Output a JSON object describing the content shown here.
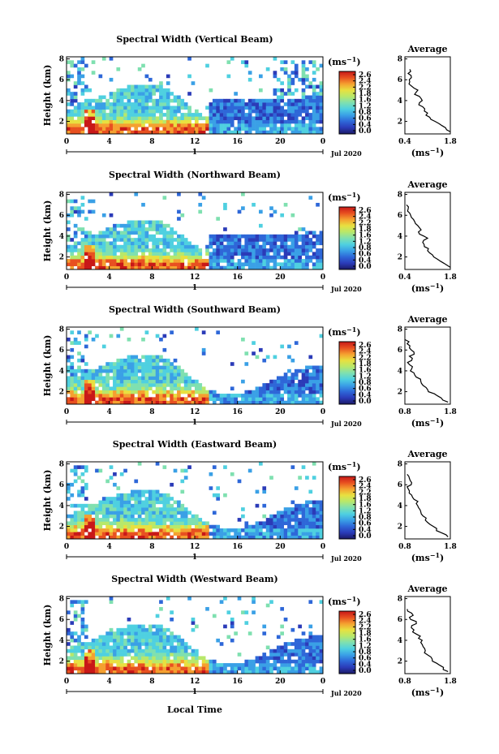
{
  "figure": {
    "xlabel": "Local Time",
    "date_label": "Jul 2020",
    "day_label": "1",
    "unit_label": "(ms",
    "unit_sup": "−1",
    "unit_close": ")",
    "avg_title": "Average",
    "avg_xlabel": "(ms",
    "avg_xlabel_sup": "−1",
    "avg_xlabel_close": ")"
  },
  "colors": {
    "colormap": [
      "#1a1a66",
      "#2b3bb8",
      "#2e67d8",
      "#3aa0e6",
      "#4fd0e0",
      "#7fe0b0",
      "#b8e86a",
      "#e8e040",
      "#f5a030",
      "#e85020",
      "#c81818"
    ]
  },
  "chart_data": [
    {
      "type": "heatmap",
      "title": "Spectral Width (Vertical Beam)",
      "ylabel": "Height (km)",
      "x_ticks": [
        "0",
        "4",
        "8",
        "12",
        "16",
        "20",
        "0"
      ],
      "y_ticks": [
        "2",
        "4",
        "6",
        "8"
      ],
      "xlim": [
        0,
        24
      ],
      "ylim": [
        0.8,
        8.2
      ],
      "colorbar_ticks": [
        "2.6",
        "2.4",
        "2.2",
        "1.8",
        "1.6",
        "1.2",
        "0.8",
        "0.6",
        "0.4",
        "0.0"
      ],
      "colorbar_range": [
        0,
        2.8
      ],
      "average_profile": {
        "x_ticks": [
          "0.4",
          "1.8"
        ],
        "y_ticks": [
          "2",
          "4",
          "6",
          "8"
        ],
        "xlim": [
          0.4,
          1.8
        ],
        "ylim": [
          0.8,
          8.2
        ],
        "width": [
          1.8,
          1.65,
          1.45,
          1.2,
          1.05,
          1.0,
          0.95,
          0.85,
          0.9,
          0.7,
          0.8,
          0.6,
          0.55,
          0.6,
          0.5,
          0.55
        ],
        "height": [
          1.0,
          1.4,
          1.8,
          2.2,
          2.6,
          3.0,
          3.4,
          3.8,
          4.2,
          4.6,
          5.0,
          5.4,
          5.8,
          6.2,
          6.6,
          7.0
        ]
      }
    },
    {
      "type": "heatmap",
      "title": "Spectral Width (Northward Beam)",
      "ylabel": "Height (km)",
      "x_ticks": [
        "0",
        "4",
        "8",
        "12",
        "16",
        "20",
        "0"
      ],
      "y_ticks": [
        "2",
        "4",
        "6",
        "8"
      ],
      "xlim": [
        0,
        24
      ],
      "ylim": [
        0.8,
        8.2
      ],
      "colorbar_ticks": [
        "2.6",
        "2.4",
        "2.2",
        "1.8",
        "1.6",
        "1.2",
        "0.8",
        "0.6",
        "0.4",
        "0.0"
      ],
      "colorbar_range": [
        0,
        2.8
      ],
      "average_profile": {
        "x_ticks": [
          "0.4",
          "1.8"
        ],
        "y_ticks": [
          "2",
          "4",
          "6",
          "8"
        ],
        "xlim": [
          0.4,
          1.8
        ],
        "ylim": [
          0.8,
          8.2
        ],
        "width": [
          1.8,
          1.6,
          1.4,
          1.25,
          1.1,
          1.0,
          0.95,
          1.1,
          0.85,
          0.9,
          0.8,
          0.7,
          0.6,
          0.55,
          0.5,
          0.45
        ],
        "height": [
          1.0,
          1.4,
          1.8,
          2.2,
          2.6,
          3.0,
          3.4,
          3.8,
          4.2,
          4.6,
          5.0,
          5.4,
          5.8,
          6.2,
          6.6,
          7.0
        ]
      }
    },
    {
      "type": "heatmap",
      "title": "Spectral Width (Southward Beam)",
      "ylabel": "Height (km)",
      "x_ticks": [
        "0",
        "4",
        "8",
        "12",
        "16",
        "20",
        "0"
      ],
      "y_ticks": [
        "2",
        "4",
        "6",
        "8"
      ],
      "xlim": [
        0,
        24
      ],
      "ylim": [
        0.8,
        8.2
      ],
      "colorbar_ticks": [
        "2.6",
        "2.4",
        "2.2",
        "1.8",
        "1.6",
        "1.2",
        "0.8",
        "0.6",
        "0.4",
        "0.0"
      ],
      "colorbar_range": [
        0,
        2.8
      ],
      "average_profile": {
        "x_ticks": [
          "0.8",
          "1.8"
        ],
        "y_ticks": [
          "2",
          "4",
          "6",
          "8"
        ],
        "xlim": [
          0.8,
          1.8
        ],
        "ylim": [
          0.8,
          8.2
        ],
        "width": [
          1.75,
          1.6,
          1.45,
          1.3,
          1.2,
          1.15,
          1.05,
          1.0,
          0.95,
          0.9,
          0.95,
          0.9,
          1.0,
          0.9,
          0.85,
          0.8
        ],
        "height": [
          1.0,
          1.4,
          1.8,
          2.2,
          2.6,
          3.0,
          3.4,
          3.8,
          4.2,
          4.6,
          5.0,
          5.4,
          5.8,
          6.2,
          6.6,
          7.0
        ]
      }
    },
    {
      "type": "heatmap",
      "title": "Spectral Width (Eastward Beam)",
      "ylabel": "Height (km)",
      "x_ticks": [
        "0",
        "4",
        "8",
        "12",
        "16",
        "20",
        "0"
      ],
      "y_ticks": [
        "2",
        "4",
        "6",
        "8"
      ],
      "xlim": [
        0,
        24
      ],
      "ylim": [
        0.8,
        8.2
      ],
      "colorbar_ticks": [
        "2.6",
        "2.4",
        "2.2",
        "1.8",
        "1.6",
        "1.2",
        "0.8",
        "0.6",
        "0.4",
        "0.0"
      ],
      "colorbar_range": [
        0,
        2.8
      ],
      "average_profile": {
        "x_ticks": [
          "0.8",
          "1.8"
        ],
        "y_ticks": [
          "2",
          "4",
          "6",
          "8"
        ],
        "xlim": [
          0.8,
          1.8
        ],
        "ylim": [
          0.8,
          8.2
        ],
        "width": [
          1.75,
          1.6,
          1.5,
          1.35,
          1.25,
          1.2,
          1.15,
          1.1,
          1.05,
          1.0,
          0.95,
          0.9,
          0.85,
          0.95,
          0.9,
          0.85
        ],
        "height": [
          1.0,
          1.4,
          1.8,
          2.2,
          2.6,
          3.0,
          3.4,
          3.8,
          4.2,
          4.6,
          5.0,
          5.4,
          5.8,
          6.2,
          6.6,
          7.0
        ]
      }
    },
    {
      "type": "heatmap",
      "title": "Spectral Width (Westward Beam)",
      "ylabel": "Height (km)",
      "x_ticks": [
        "0",
        "4",
        "8",
        "12",
        "16",
        "20",
        "0"
      ],
      "y_ticks": [
        "2",
        "4",
        "6",
        "8"
      ],
      "xlim": [
        0,
        24
      ],
      "ylim": [
        0.8,
        8.2
      ],
      "colorbar_ticks": [
        "2.6",
        "2.4",
        "2.2",
        "1.8",
        "1.6",
        "1.2",
        "0.8",
        "0.6",
        "0.4",
        "0.0"
      ],
      "colorbar_range": [
        0,
        2.8
      ],
      "average_profile": {
        "x_ticks": [
          "0.8",
          "1.8"
        ],
        "y_ticks": [
          "2",
          "4",
          "6",
          "8"
        ],
        "xlim": [
          0.8,
          1.8
        ],
        "ylim": [
          0.8,
          8.2
        ],
        "width": [
          1.75,
          1.65,
          1.5,
          1.4,
          1.3,
          1.25,
          1.2,
          1.15,
          1.1,
          1.05,
          1.0,
          0.95,
          1.05,
          0.9,
          0.95,
          0.85
        ],
        "height": [
          1.0,
          1.4,
          1.8,
          2.2,
          2.6,
          3.0,
          3.4,
          3.8,
          4.2,
          4.6,
          5.0,
          5.4,
          5.8,
          6.2,
          6.6,
          7.0
        ]
      }
    }
  ]
}
